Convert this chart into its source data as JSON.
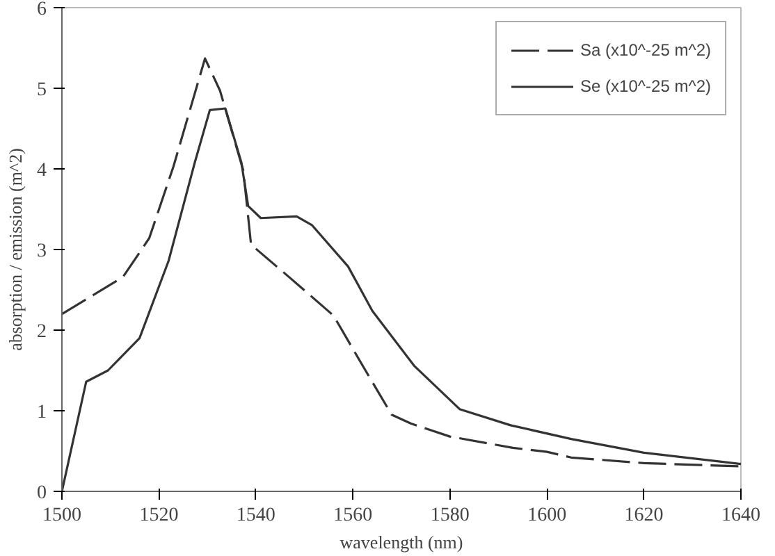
{
  "chart_data": {
    "type": "line",
    "xlabel": "wavelength (nm)",
    "ylabel": "absorption / emission (m^2)",
    "xlim": [
      1500,
      1640
    ],
    "xticks": [
      1500,
      1520,
      1540,
      1560,
      1580,
      1600,
      1620,
      1640
    ],
    "ylim": [
      0,
      6
    ],
    "yticks": [
      0,
      1,
      2,
      3,
      4,
      5,
      6
    ],
    "grid": false,
    "legend": "top right",
    "marker": "none",
    "series": [
      {
        "name": "Sa (x10^-25 m^2)",
        "color": "#333333",
        "line_style": "dashed",
        "x": [
          1500,
          1512.6,
          1518,
          1523,
          1529.5,
          1532.6,
          1537.4,
          1539,
          1547,
          1556,
          1562,
          1568,
          1572,
          1580,
          1593,
          1600,
          1605,
          1620,
          1640
        ],
        "values": [
          2.2,
          2.66,
          3.14,
          4.03,
          5.37,
          4.97,
          3.98,
          3.06,
          2.65,
          2.18,
          1.56,
          0.95,
          0.84,
          0.68,
          0.54,
          0.49,
          0.42,
          0.35,
          0.31
        ]
      },
      {
        "name": "Se (x10^-25 m^2)",
        "color": "#333333",
        "line_style": "solid",
        "x": [
          1500,
          1505,
          1509.5,
          1516,
          1522,
          1527.4,
          1530.5,
          1533.7,
          1537,
          1538.4,
          1541,
          1548.4,
          1551.6,
          1559,
          1564,
          1572.6,
          1582,
          1592.5,
          1605,
          1620,
          1640
        ],
        "values": [
          0,
          1.36,
          1.5,
          1.9,
          2.86,
          4.08,
          4.73,
          4.75,
          4.08,
          3.54,
          3.39,
          3.41,
          3.3,
          2.79,
          2.24,
          1.56,
          1.02,
          0.82,
          0.65,
          0.48,
          0.34
        ]
      }
    ]
  }
}
